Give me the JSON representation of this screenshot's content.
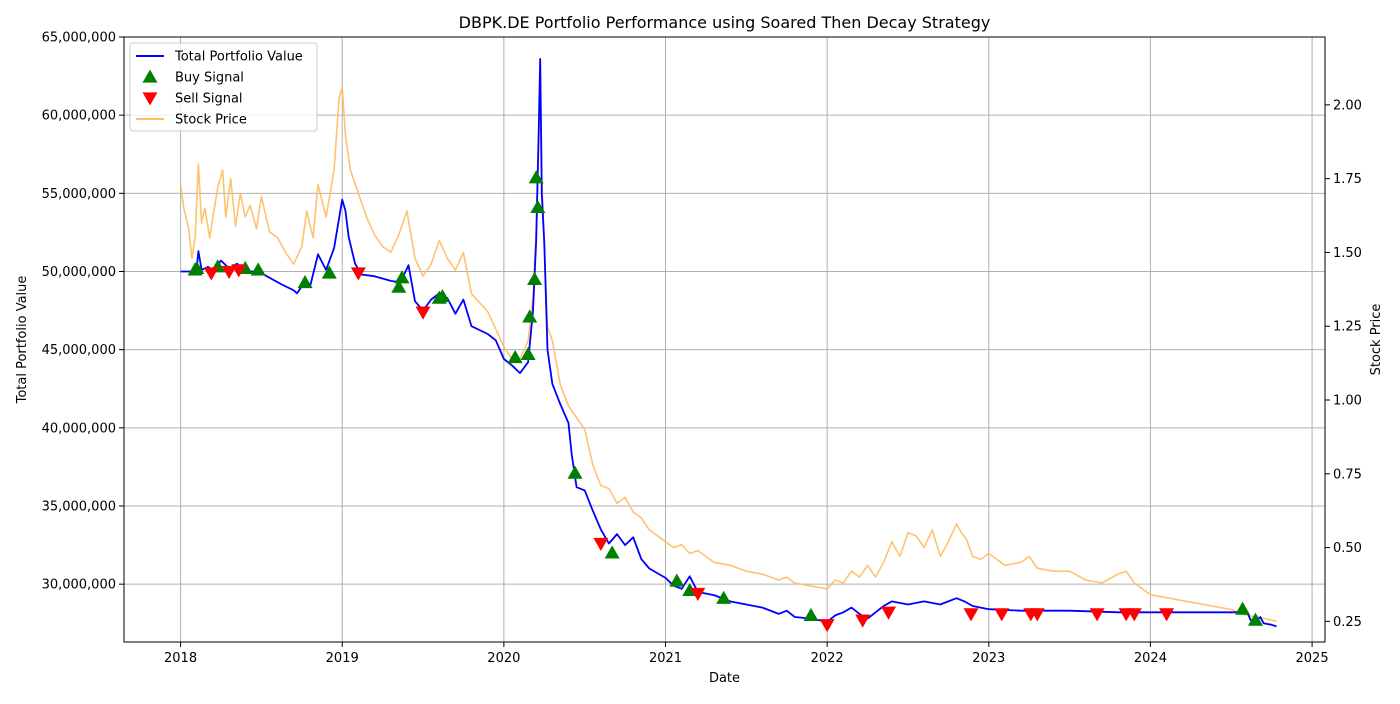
{
  "chart_data": {
    "type": "line",
    "title": "DBPK.DE Portfolio Performance using Soared Then Decay Strategy",
    "xlabel": "Date",
    "ylabel": "Total Portfolio Value",
    "y2label": "Stock Price",
    "xlim": [
      2017.65,
      2025.08
    ],
    "ylim": [
      26300000,
      65000000
    ],
    "y2lim": [
      0.18,
      2.23
    ],
    "x_ticks": [
      2018,
      2019,
      2020,
      2021,
      2022,
      2023,
      2024,
      2025
    ],
    "x_tick_labels": [
      "2018",
      "2019",
      "2020",
      "2021",
      "2022",
      "2023",
      "2024",
      "2025"
    ],
    "y_ticks": [
      30000000,
      35000000,
      40000000,
      45000000,
      50000000,
      55000000,
      60000000,
      65000000
    ],
    "y_tick_labels": [
      "30,000,000",
      "35,000,000",
      "40,000,000",
      "45,000,000",
      "50,000,000",
      "55,000,000",
      "60,000,000",
      "65,000,000"
    ],
    "y2_ticks": [
      0.25,
      0.5,
      0.75,
      1.0,
      1.25,
      1.5,
      1.75,
      2.0
    ],
    "y2_tick_labels": [
      "0.25",
      "0.50",
      "0.75",
      "1.00",
      "1.25",
      "1.50",
      "1.75",
      "2.00"
    ],
    "grid": true,
    "legend_position": "top-left",
    "colors": {
      "portfolio": "#0000ff",
      "buy": "#008000",
      "sell": "#ff0000",
      "stock": "#fdc067"
    },
    "legend": [
      {
        "label": "Total Portfolio Value",
        "kind": "line",
        "color": "#0000ff"
      },
      {
        "label": "Buy Signal",
        "kind": "triangle-up",
        "color": "#008000"
      },
      {
        "label": "Sell Signal",
        "kind": "triangle-down",
        "color": "#ff0000"
      },
      {
        "label": "Stock Price",
        "kind": "line",
        "color": "#fdc067"
      }
    ],
    "series": [
      {
        "name": "Total Portfolio Value",
        "axis": "left",
        "color": "#0000ff",
        "points": [
          [
            2018.0,
            50000000
          ],
          [
            2018.08,
            50000000
          ],
          [
            2018.1,
            50200000
          ],
          [
            2018.11,
            51300000
          ],
          [
            2018.13,
            50100000
          ],
          [
            2018.17,
            50300000
          ],
          [
            2018.2,
            50000000
          ],
          [
            2018.25,
            50700000
          ],
          [
            2018.3,
            50200000
          ],
          [
            2018.35,
            50500000
          ],
          [
            2018.4,
            50000000
          ],
          [
            2018.48,
            50000000
          ],
          [
            2018.55,
            49600000
          ],
          [
            2018.62,
            49200000
          ],
          [
            2018.7,
            48800000
          ],
          [
            2018.72,
            48600000
          ],
          [
            2018.76,
            49200000
          ],
          [
            2018.8,
            49000000
          ],
          [
            2018.85,
            51100000
          ],
          [
            2018.9,
            50100000
          ],
          [
            2018.95,
            51500000
          ],
          [
            2019.0,
            54600000
          ],
          [
            2019.02,
            53900000
          ],
          [
            2019.04,
            52200000
          ],
          [
            2019.08,
            50500000
          ],
          [
            2019.12,
            49800000
          ],
          [
            2019.2,
            49700000
          ],
          [
            2019.3,
            49400000
          ],
          [
            2019.36,
            49300000
          ],
          [
            2019.41,
            50400000
          ],
          [
            2019.45,
            48100000
          ],
          [
            2019.5,
            47500000
          ],
          [
            2019.55,
            48200000
          ],
          [
            2019.6,
            48600000
          ],
          [
            2019.65,
            48300000
          ],
          [
            2019.7,
            47300000
          ],
          [
            2019.75,
            48200000
          ],
          [
            2019.8,
            46500000
          ],
          [
            2019.9,
            46000000
          ],
          [
            2019.95,
            45600000
          ],
          [
            2020.0,
            44400000
          ],
          [
            2020.05,
            44000000
          ],
          [
            2020.1,
            43500000
          ],
          [
            2020.15,
            44200000
          ],
          [
            2020.18,
            47500000
          ],
          [
            2020.2,
            52000000
          ],
          [
            2020.215,
            58700000
          ],
          [
            2020.225,
            63600000
          ],
          [
            2020.235,
            55000000
          ],
          [
            2020.25,
            51800000
          ],
          [
            2020.27,
            45000000
          ],
          [
            2020.3,
            42800000
          ],
          [
            2020.35,
            41500000
          ],
          [
            2020.4,
            40300000
          ],
          [
            2020.42,
            38300000
          ],
          [
            2020.45,
            36200000
          ],
          [
            2020.5,
            36000000
          ],
          [
            2020.55,
            34700000
          ],
          [
            2020.6,
            33500000
          ],
          [
            2020.65,
            32600000
          ],
          [
            2020.7,
            33200000
          ],
          [
            2020.75,
            32500000
          ],
          [
            2020.8,
            33000000
          ],
          [
            2020.85,
            31600000
          ],
          [
            2020.9,
            31000000
          ],
          [
            2021.0,
            30400000
          ],
          [
            2021.05,
            29900000
          ],
          [
            2021.1,
            29700000
          ],
          [
            2021.15,
            30500000
          ],
          [
            2021.2,
            29500000
          ],
          [
            2021.3,
            29300000
          ],
          [
            2021.4,
            28900000
          ],
          [
            2021.5,
            28700000
          ],
          [
            2021.6,
            28500000
          ],
          [
            2021.7,
            28100000
          ],
          [
            2021.75,
            28300000
          ],
          [
            2021.8,
            27900000
          ],
          [
            2021.9,
            27800000
          ],
          [
            2022.0,
            27600000
          ],
          [
            2022.05,
            28000000
          ],
          [
            2022.1,
            28200000
          ],
          [
            2022.15,
            28500000
          ],
          [
            2022.2,
            28100000
          ],
          [
            2022.25,
            27800000
          ],
          [
            2022.3,
            28200000
          ],
          [
            2022.35,
            28600000
          ],
          [
            2022.4,
            28900000
          ],
          [
            2022.5,
            28700000
          ],
          [
            2022.6,
            28900000
          ],
          [
            2022.7,
            28700000
          ],
          [
            2022.8,
            29100000
          ],
          [
            2022.85,
            28900000
          ],
          [
            2022.9,
            28600000
          ],
          [
            2023.0,
            28400000
          ],
          [
            2023.2,
            28300000
          ],
          [
            2023.5,
            28300000
          ],
          [
            2023.8,
            28200000
          ],
          [
            2024.0,
            28200000
          ],
          [
            2024.3,
            28200000
          ],
          [
            2024.6,
            28200000
          ],
          [
            2024.62,
            27700000
          ],
          [
            2024.65,
            27600000
          ],
          [
            2024.68,
            27900000
          ],
          [
            2024.7,
            27500000
          ],
          [
            2024.75,
            27400000
          ],
          [
            2024.78,
            27300000
          ]
        ]
      },
      {
        "name": "Stock Price",
        "axis": "right",
        "color": "#fdc067",
        "points": [
          [
            2018.0,
            1.73
          ],
          [
            2018.02,
            1.65
          ],
          [
            2018.05,
            1.58
          ],
          [
            2018.07,
            1.48
          ],
          [
            2018.09,
            1.55
          ],
          [
            2018.11,
            1.8
          ],
          [
            2018.13,
            1.6
          ],
          [
            2018.15,
            1.65
          ],
          [
            2018.18,
            1.55
          ],
          [
            2018.2,
            1.62
          ],
          [
            2018.23,
            1.72
          ],
          [
            2018.26,
            1.78
          ],
          [
            2018.28,
            1.62
          ],
          [
            2018.31,
            1.75
          ],
          [
            2018.34,
            1.59
          ],
          [
            2018.37,
            1.7
          ],
          [
            2018.4,
            1.62
          ],
          [
            2018.43,
            1.66
          ],
          [
            2018.47,
            1.58
          ],
          [
            2018.5,
            1.69
          ],
          [
            2018.55,
            1.57
          ],
          [
            2018.6,
            1.55
          ],
          [
            2018.65,
            1.5
          ],
          [
            2018.7,
            1.46
          ],
          [
            2018.75,
            1.52
          ],
          [
            2018.78,
            1.64
          ],
          [
            2018.82,
            1.55
          ],
          [
            2018.85,
            1.73
          ],
          [
            2018.9,
            1.62
          ],
          [
            2018.95,
            1.78
          ],
          [
            2018.98,
            2.02
          ],
          [
            2019.0,
            2.06
          ],
          [
            2019.02,
            1.9
          ],
          [
            2019.05,
            1.78
          ],
          [
            2019.1,
            1.7
          ],
          [
            2019.15,
            1.62
          ],
          [
            2019.2,
            1.56
          ],
          [
            2019.25,
            1.52
          ],
          [
            2019.3,
            1.5
          ],
          [
            2019.35,
            1.56
          ],
          [
            2019.4,
            1.64
          ],
          [
            2019.45,
            1.48
          ],
          [
            2019.5,
            1.42
          ],
          [
            2019.55,
            1.46
          ],
          [
            2019.6,
            1.54
          ],
          [
            2019.65,
            1.48
          ],
          [
            2019.7,
            1.44
          ],
          [
            2019.75,
            1.5
          ],
          [
            2019.8,
            1.36
          ],
          [
            2019.9,
            1.3
          ],
          [
            2019.95,
            1.24
          ],
          [
            2020.0,
            1.18
          ],
          [
            2020.05,
            1.14
          ],
          [
            2020.1,
            1.14
          ],
          [
            2020.15,
            1.2
          ],
          [
            2020.18,
            1.35
          ],
          [
            2020.2,
            1.58
          ],
          [
            2020.215,
            1.85
          ],
          [
            2020.225,
            2.14
          ],
          [
            2020.235,
            1.75
          ],
          [
            2020.25,
            1.52
          ],
          [
            2020.27,
            1.25
          ],
          [
            2020.3,
            1.2
          ],
          [
            2020.35,
            1.05
          ],
          [
            2020.4,
            0.98
          ],
          [
            2020.45,
            0.94
          ],
          [
            2020.5,
            0.9
          ],
          [
            2020.55,
            0.78
          ],
          [
            2020.6,
            0.71
          ],
          [
            2020.65,
            0.7
          ],
          [
            2020.7,
            0.65
          ],
          [
            2020.75,
            0.67
          ],
          [
            2020.8,
            0.62
          ],
          [
            2020.85,
            0.6
          ],
          [
            2020.9,
            0.56
          ],
          [
            2020.95,
            0.54
          ],
          [
            2021.0,
            0.52
          ],
          [
            2021.05,
            0.5
          ],
          [
            2021.1,
            0.51
          ],
          [
            2021.15,
            0.48
          ],
          [
            2021.2,
            0.49
          ],
          [
            2021.3,
            0.45
          ],
          [
            2021.4,
            0.44
          ],
          [
            2021.5,
            0.42
          ],
          [
            2021.6,
            0.41
          ],
          [
            2021.7,
            0.39
          ],
          [
            2021.75,
            0.4
          ],
          [
            2021.8,
            0.38
          ],
          [
            2021.9,
            0.37
          ],
          [
            2022.0,
            0.36
          ],
          [
            2022.05,
            0.39
          ],
          [
            2022.1,
            0.38
          ],
          [
            2022.15,
            0.42
          ],
          [
            2022.2,
            0.4
          ],
          [
            2022.25,
            0.44
          ],
          [
            2022.3,
            0.4
          ],
          [
            2022.35,
            0.45
          ],
          [
            2022.4,
            0.52
          ],
          [
            2022.45,
            0.47
          ],
          [
            2022.5,
            0.55
          ],
          [
            2022.55,
            0.54
          ],
          [
            2022.6,
            0.5
          ],
          [
            2022.65,
            0.56
          ],
          [
            2022.7,
            0.47
          ],
          [
            2022.75,
            0.52
          ],
          [
            2022.8,
            0.58
          ],
          [
            2022.83,
            0.55
          ],
          [
            2022.86,
            0.53
          ],
          [
            2022.9,
            0.47
          ],
          [
            2022.95,
            0.46
          ],
          [
            2023.0,
            0.48
          ],
          [
            2023.05,
            0.46
          ],
          [
            2023.1,
            0.44
          ],
          [
            2023.2,
            0.45
          ],
          [
            2023.25,
            0.47
          ],
          [
            2023.3,
            0.43
          ],
          [
            2023.4,
            0.42
          ],
          [
            2023.5,
            0.42
          ],
          [
            2023.6,
            0.39
          ],
          [
            2023.7,
            0.38
          ],
          [
            2023.8,
            0.41
          ],
          [
            2023.85,
            0.42
          ],
          [
            2023.9,
            0.38
          ],
          [
            2024.0,
            0.34
          ],
          [
            2024.1,
            0.33
          ],
          [
            2024.2,
            0.32
          ],
          [
            2024.3,
            0.31
          ],
          [
            2024.4,
            0.3
          ],
          [
            2024.5,
            0.29
          ],
          [
            2024.6,
            0.27
          ],
          [
            2024.7,
            0.26
          ],
          [
            2024.78,
            0.25
          ]
        ]
      }
    ],
    "buy_signals": [
      [
        2018.09,
        50100000
      ],
      [
        2018.1,
        50200000
      ],
      [
        2018.23,
        50300000
      ],
      [
        2018.4,
        50200000
      ],
      [
        2018.48,
        50100000
      ],
      [
        2018.77,
        49300000
      ],
      [
        2018.92,
        49900000
      ],
      [
        2019.35,
        49000000
      ],
      [
        2019.37,
        49600000
      ],
      [
        2019.6,
        48300000
      ],
      [
        2019.62,
        48400000
      ],
      [
        2020.07,
        44500000
      ],
      [
        2020.15,
        44700000
      ],
      [
        2020.16,
        47100000
      ],
      [
        2020.19,
        49500000
      ],
      [
        2020.2,
        56000000
      ],
      [
        2020.21,
        54100000
      ],
      [
        2020.44,
        37100000
      ],
      [
        2020.67,
        32000000
      ],
      [
        2021.07,
        30200000
      ],
      [
        2021.15,
        29600000
      ],
      [
        2021.36,
        29100000
      ],
      [
        2021.9,
        28000000
      ],
      [
        2024.57,
        28400000
      ],
      [
        2024.65,
        27700000
      ]
    ],
    "sell_signals": [
      [
        2018.19,
        49900000
      ],
      [
        2018.3,
        50000000
      ],
      [
        2018.36,
        50100000
      ],
      [
        2019.1,
        49900000
      ],
      [
        2019.5,
        47400000
      ],
      [
        2020.6,
        32600000
      ],
      [
        2021.2,
        29400000
      ],
      [
        2022.0,
        27400000
      ],
      [
        2022.22,
        27700000
      ],
      [
        2022.38,
        28200000
      ],
      [
        2022.89,
        28100000
      ],
      [
        2023.08,
        28100000
      ],
      [
        2023.26,
        28100000
      ],
      [
        2023.3,
        28100000
      ],
      [
        2023.67,
        28100000
      ],
      [
        2023.85,
        28100000
      ],
      [
        2023.9,
        28100000
      ],
      [
        2024.1,
        28100000
      ]
    ]
  }
}
